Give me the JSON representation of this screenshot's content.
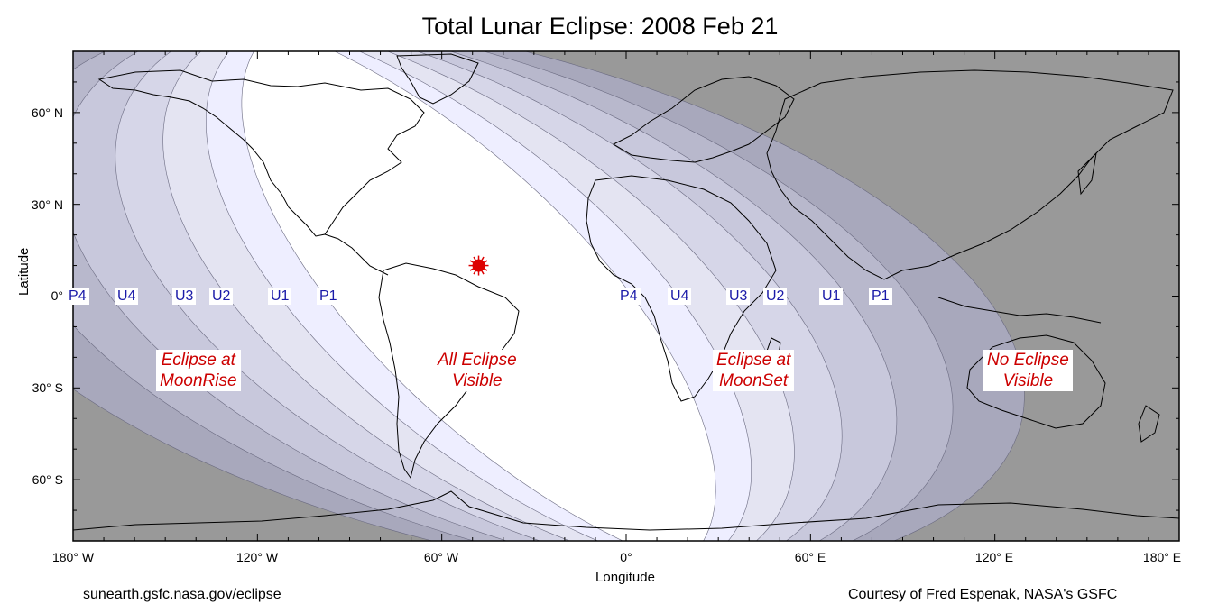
{
  "title": "Total Lunar Eclipse: 2008 Feb 21",
  "axes": {
    "ylabel": "Latitude",
    "xlabel": "Longitude",
    "lat_ticks": [
      "60° N",
      "30° N",
      "0°",
      "30° S",
      "60° S"
    ],
    "lon_ticks": [
      "180° W",
      "120° W",
      "60° W",
      "0°",
      "60° E",
      "120° E",
      "180° E"
    ]
  },
  "contact_labels": {
    "west": [
      {
        "label": "P4",
        "lon": -177
      },
      {
        "label": "U4",
        "lon": -163
      },
      {
        "label": "U3",
        "lon": -145
      },
      {
        "label": "U2",
        "lon": -133
      },
      {
        "label": "U1",
        "lon": -114
      },
      {
        "label": "P1",
        "lon": -97
      }
    ],
    "east": [
      {
        "label": "P4",
        "lon": 1
      },
      {
        "label": "U4",
        "lon": 17
      },
      {
        "label": "U3",
        "lon": 36
      },
      {
        "label": "U2",
        "lon": 49
      },
      {
        "label": "U1",
        "lon": 66
      },
      {
        "label": "P1",
        "lon": 83
      }
    ]
  },
  "zone_labels": {
    "moonrise": [
      "Eclipse at",
      "MoonRise"
    ],
    "all_visible": [
      "All Eclipse",
      "Visible"
    ],
    "moonset": [
      "Eclipse at",
      "MoonSet"
    ],
    "none": [
      "No Eclipse",
      "Visible"
    ]
  },
  "subsolar_marker": {
    "lon": -48,
    "lat": 10,
    "color": "#dd0000"
  },
  "colors": {
    "no_eclipse": "#999999",
    "penumbral_light": "#eeeeff",
    "umbral_tones": [
      "#e4e4f2",
      "#d6d6e8",
      "#c8c8dc",
      "#b8b8cc",
      "#a8a8bc"
    ],
    "label_red": "#cc0000",
    "label_blue": "#1a1aa8"
  },
  "footer": {
    "left": "sunearth.gsfc.nasa.gov/eclipse",
    "right": "Courtesy of Fred Espenak, NASA's GSFC"
  }
}
